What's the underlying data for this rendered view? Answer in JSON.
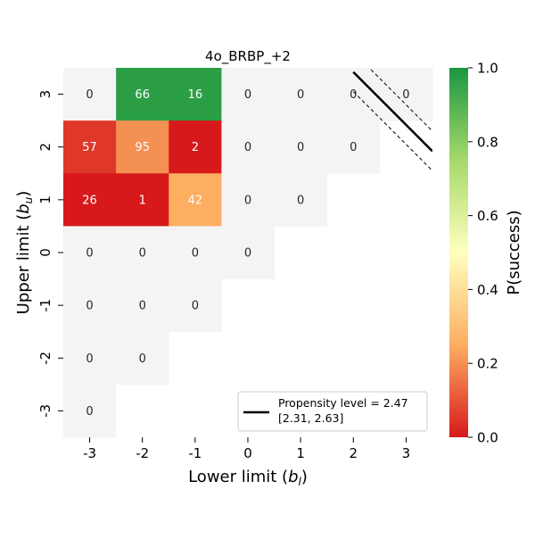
{
  "chart_data": {
    "type": "heatmap",
    "title": "4o_BRBP_+2",
    "xlabel": "Lower limit (b_l)",
    "ylabel": "Upper limit (b_u)",
    "x_ticks": [
      "-3",
      "-2",
      "-1",
      "0",
      "1",
      "2",
      "3"
    ],
    "y_ticks": [
      "3",
      "2",
      "1",
      "0",
      "-1",
      "-2",
      "-3"
    ],
    "cells": [
      {
        "x": -3,
        "y": 3,
        "n": "0",
        "p": null
      },
      {
        "x": -2,
        "y": 3,
        "n": "66",
        "p": 0.97
      },
      {
        "x": -1,
        "y": 3,
        "n": "16",
        "p": 0.97
      },
      {
        "x": 0,
        "y": 3,
        "n": "0",
        "p": null
      },
      {
        "x": 1,
        "y": 3,
        "n": "0",
        "p": null
      },
      {
        "x": 2,
        "y": 3,
        "n": "0",
        "p": null
      },
      {
        "x": 3,
        "y": 3,
        "n": "0",
        "p": null
      },
      {
        "x": -3,
        "y": 2,
        "n": "57",
        "p": 0.05
      },
      {
        "x": -2,
        "y": 2,
        "n": "95",
        "p": 0.2
      },
      {
        "x": -1,
        "y": 2,
        "n": "2",
        "p": 0.0
      },
      {
        "x": 0,
        "y": 2,
        "n": "0",
        "p": null
      },
      {
        "x": 1,
        "y": 2,
        "n": "0",
        "p": null
      },
      {
        "x": 2,
        "y": 2,
        "n": "0",
        "p": null
      },
      {
        "x": -3,
        "y": 1,
        "n": "26",
        "p": 0.0
      },
      {
        "x": -2,
        "y": 1,
        "n": "1",
        "p": 0.0
      },
      {
        "x": -1,
        "y": 1,
        "n": "42",
        "p": 0.25
      },
      {
        "x": 0,
        "y": 1,
        "n": "0",
        "p": null
      },
      {
        "x": 1,
        "y": 1,
        "n": "0",
        "p": null
      },
      {
        "x": -3,
        "y": 0,
        "n": "0",
        "p": null
      },
      {
        "x": -2,
        "y": 0,
        "n": "0",
        "p": null
      },
      {
        "x": -1,
        "y": 0,
        "n": "0",
        "p": null
      },
      {
        "x": 0,
        "y": 0,
        "n": "0",
        "p": null
      },
      {
        "x": -3,
        "y": -1,
        "n": "0",
        "p": null
      },
      {
        "x": -2,
        "y": -1,
        "n": "0",
        "p": null
      },
      {
        "x": -1,
        "y": -1,
        "n": "0",
        "p": null
      },
      {
        "x": -3,
        "y": -2,
        "n": "0",
        "p": null
      },
      {
        "x": -2,
        "y": -2,
        "n": "0",
        "p": null
      },
      {
        "x": -3,
        "y": -3,
        "n": "0",
        "p": null
      }
    ],
    "propensity_line": {
      "level": 2.47,
      "ci_low": 2.31,
      "ci_high": 2.63,
      "x_range": [
        2.0,
        3.5
      ]
    },
    "legend": {
      "label_line1": "Propensity level = 2.47",
      "label_line2": "[2.31, 2.63]",
      "position": "lower-right"
    },
    "colorbar": {
      "label": "P(success)",
      "ticks": [
        "0.0",
        "0.2",
        "0.4",
        "0.6",
        "0.8",
        "1.0"
      ],
      "range": [
        0,
        1
      ]
    },
    "colors": {
      "empty_cell": "#f4f4f4",
      "line": "#000000"
    }
  }
}
